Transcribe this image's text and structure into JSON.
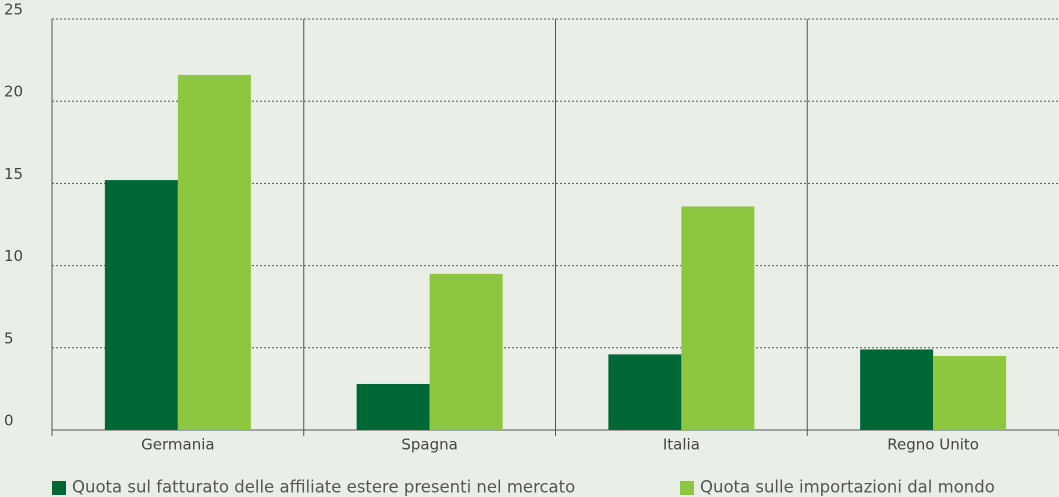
{
  "chart_data": {
    "type": "bar",
    "categories": [
      "Germania",
      "Spagna",
      "Italia",
      "Regno Unito"
    ],
    "series": [
      {
        "name": "Quota sul fatturato delle affiliate estere presenti nel mercato",
        "color": "#006837",
        "values": [
          15.2,
          2.8,
          4.6,
          4.9
        ]
      },
      {
        "name": "Quota sulle importazioni dal mondo",
        "color": "#8dc63f",
        "values": [
          21.6,
          9.5,
          13.6,
          4.5
        ]
      }
    ],
    "ylim": [
      0,
      25
    ],
    "yticks": [
      0,
      5,
      10,
      15,
      20,
      25
    ],
    "grid": true,
    "legend": "bottom"
  }
}
